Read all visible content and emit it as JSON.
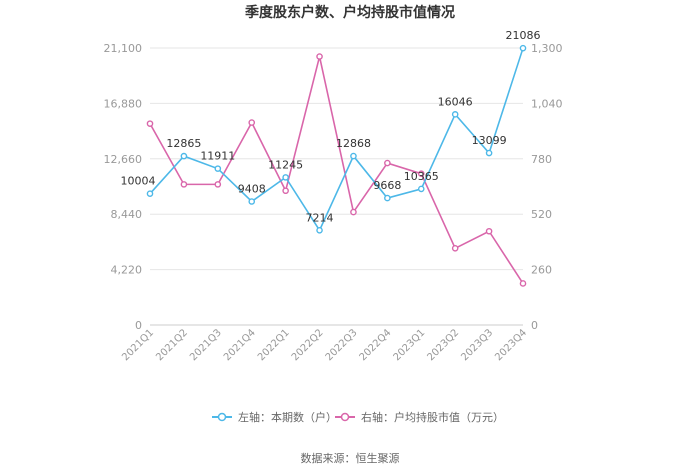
{
  "chart_data": {
    "type": "line",
    "title": "季度股东户数、户均持股市值情况",
    "categories": [
      "2021Q1",
      "2021Q2",
      "2021Q3",
      "2021Q4",
      "2022Q1",
      "2022Q2",
      "2022Q3",
      "2022Q4",
      "2023Q1",
      "2023Q2",
      "2023Q3",
      "2023Q4"
    ],
    "left_axis": {
      "min": 0,
      "max": 21100,
      "ticks": [
        "0",
        "4,220",
        "8,440",
        "12,660",
        "16,880",
        "21,100"
      ]
    },
    "right_axis": {
      "min": 0,
      "max": 1300,
      "ticks": [
        "0",
        "260",
        "520",
        "780",
        "1,040",
        "1,300"
      ]
    },
    "series": [
      {
        "name": "左轴：本期数（户）",
        "axis": "left",
        "color": "#4db8e8",
        "values": [
          10004,
          12865,
          11911,
          9408,
          11245,
          7214,
          12868,
          9668,
          10365,
          16046,
          13099,
          21086
        ],
        "labels": [
          "10004",
          "12865",
          "11911",
          "9408",
          "11245",
          "7214",
          "12868",
          "9668",
          "10365",
          "16046",
          "13099",
          "21086"
        ]
      },
      {
        "name": "右轴：户均持股市值（万元）",
        "axis": "right",
        "color": "#d966aa",
        "values": [
          945,
          660,
          660,
          950,
          630,
          1260,
          530,
          760,
          710,
          360,
          440,
          195
        ]
      }
    ],
    "legend_position": "bottom",
    "grid": true
  },
  "source_text": "数据来源：恒生聚源"
}
